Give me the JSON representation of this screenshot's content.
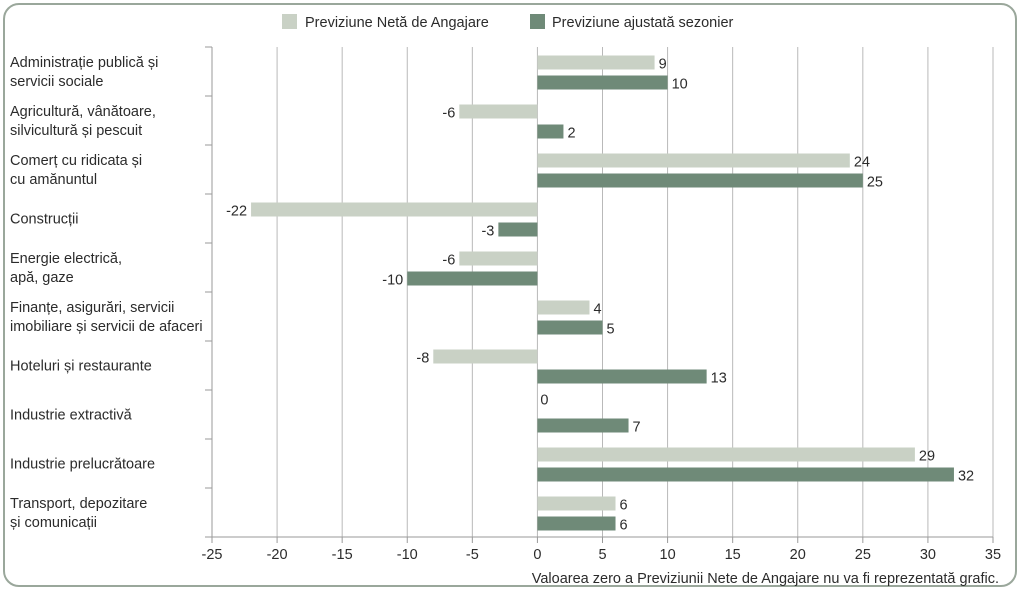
{
  "chart_data": {
    "type": "bar",
    "orientation": "horizontal",
    "categories": [
      [
        "Administrație publică și",
        "servicii sociale"
      ],
      [
        "Agricultură, vânătoare,",
        "silvicultură și pescuit"
      ],
      [
        "Comerț cu ridicata și",
        "cu amănuntul"
      ],
      [
        "Construcții"
      ],
      [
        "Energie electrică,",
        "apă, gaze"
      ],
      [
        "Finanțe, asigurări, servicii",
        "imobiliare și servicii de afaceri"
      ],
      [
        "Hoteluri și restaurante"
      ],
      [
        "Industrie extractivă"
      ],
      [
        "Industrie prelucrătoare"
      ],
      [
        "Transport, depozitare",
        "și comunicații"
      ]
    ],
    "series": [
      {
        "name": "Previziune Netă de Angajare",
        "color": "#c9d1c5",
        "values": [
          9,
          -6,
          24,
          -22,
          -6,
          4,
          -8,
          0,
          29,
          6
        ]
      },
      {
        "name": "Previziune ajustată sezonier",
        "color": "#6f8a78",
        "values": [
          10,
          2,
          25,
          -3,
          -10,
          5,
          13,
          7,
          32,
          6
        ]
      }
    ],
    "xlim": [
      -25,
      35
    ],
    "xticks": [
      -25,
      -20,
      -15,
      -10,
      -5,
      0,
      5,
      10,
      15,
      20,
      25,
      30,
      35
    ],
    "grid": true,
    "legend": "top-center",
    "note": "Valoarea zero a Previziunii Nete de Angajare nu va fi reprezentată grafic."
  }
}
